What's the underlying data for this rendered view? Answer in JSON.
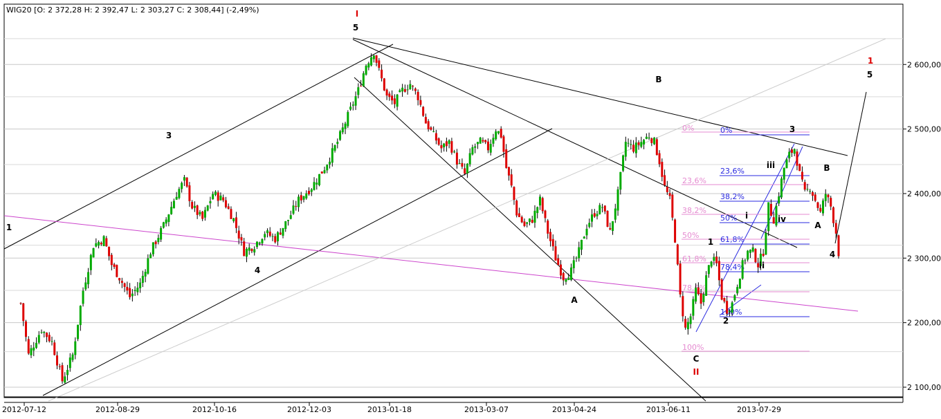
{
  "header": {
    "symbol": "WIG20",
    "ohlc_text": "WIG20 [O: 2 372,28  H: 2 392,47  L: 2 303,27  C: 2 308,44] (-2,49%)"
  },
  "colors": {
    "up": "#00aa00",
    "down": "#dd0000",
    "fib_pink": "#e58ad0",
    "fib_blue": "#2a2ae0",
    "trend_magenta": "#cc44cc",
    "grid": "#c8c8c8"
  },
  "chart_data": {
    "type": "candlestick",
    "title": "",
    "xlabel": "",
    "ylabel": "",
    "ylim": [
      2085,
      2705
    ],
    "y_ticks": [
      2100,
      2200,
      2300,
      2400,
      2500,
      2600
    ],
    "y_tick_labels": [
      "2 100,00",
      "2 200,00",
      "2 300,00",
      "2 400,00",
      "2 500,00",
      "2 600,00"
    ],
    "x_tick_labels": [
      "2012-07-12",
      "2012-08-29",
      "2012-10-16",
      "2012-12-03",
      "2013-01-18",
      "2013-03-07",
      "2013-04-24",
      "2013-06-11",
      "2013-07-29"
    ],
    "price_anchors": [
      [
        0,
        2230
      ],
      [
        3,
        2150
      ],
      [
        8,
        2190
      ],
      [
        12,
        2170
      ],
      [
        16,
        2110
      ],
      [
        20,
        2150
      ],
      [
        24,
        2250
      ],
      [
        28,
        2320
      ],
      [
        32,
        2330
      ],
      [
        35,
        2290
      ],
      [
        38,
        2270
      ],
      [
        42,
        2240
      ],
      [
        46,
        2260
      ],
      [
        50,
        2310
      ],
      [
        55,
        2350
      ],
      [
        60,
        2400
      ],
      [
        63,
        2420
      ],
      [
        66,
        2380
      ],
      [
        70,
        2360
      ],
      [
        74,
        2400
      ],
      [
        78,
        2390
      ],
      [
        82,
        2360
      ],
      [
        86,
        2310
      ],
      [
        90,
        2320
      ],
      [
        94,
        2340
      ],
      [
        98,
        2330
      ],
      [
        103,
        2360
      ],
      [
        107,
        2390
      ],
      [
        112,
        2410
      ],
      [
        117,
        2440
      ],
      [
        122,
        2480
      ],
      [
        126,
        2520
      ],
      [
        130,
        2560
      ],
      [
        133,
        2600
      ],
      [
        136,
        2620
      ],
      [
        138,
        2590
      ],
      [
        141,
        2550
      ],
      [
        144,
        2540
      ],
      [
        147,
        2560
      ],
      [
        150,
        2570
      ],
      [
        153,
        2550
      ],
      [
        156,
        2510
      ],
      [
        159,
        2490
      ],
      [
        162,
        2470
      ],
      [
        165,
        2480
      ],
      [
        168,
        2450
      ],
      [
        171,
        2430
      ],
      [
        174,
        2470
      ],
      [
        177,
        2480
      ],
      [
        180,
        2470
      ],
      [
        183,
        2500
      ],
      [
        185,
        2490
      ],
      [
        187,
        2440
      ],
      [
        189,
        2410
      ],
      [
        191,
        2370
      ],
      [
        194,
        2350
      ],
      [
        197,
        2360
      ],
      [
        200,
        2390
      ],
      [
        203,
        2340
      ],
      [
        206,
        2300
      ],
      [
        209,
        2270
      ],
      [
        212,
        2280
      ],
      [
        215,
        2310
      ],
      [
        218,
        2350
      ],
      [
        221,
        2370
      ],
      [
        224,
        2380
      ],
      [
        227,
        2340
      ],
      [
        230,
        2400
      ],
      [
        233,
        2480
      ],
      [
        236,
        2470
      ],
      [
        239,
        2480
      ],
      [
        242,
        2490
      ],
      [
        244,
        2480
      ],
      [
        246,
        2450
      ],
      [
        248,
        2410
      ],
      [
        250,
        2390
      ],
      [
        252,
        2330
      ],
      [
        254,
        2240
      ],
      [
        256,
        2190
      ],
      [
        258,
        2210
      ],
      [
        260,
        2250
      ],
      [
        262,
        2230
      ],
      [
        264,
        2270
      ],
      [
        266,
        2300
      ],
      [
        268,
        2290
      ],
      [
        270,
        2240
      ],
      [
        272,
        2220
      ],
      [
        274,
        2230
      ],
      [
        276,
        2260
      ],
      [
        278,
        2290
      ],
      [
        280,
        2310
      ],
      [
        282,
        2310
      ],
      [
        284,
        2290
      ],
      [
        286,
        2310
      ],
      [
        288,
        2380
      ],
      [
        290,
        2360
      ],
      [
        292,
        2400
      ],
      [
        294,
        2440
      ],
      [
        296,
        2460
      ],
      [
        298,
        2470
      ],
      [
        300,
        2430
      ],
      [
        302,
        2400
      ],
      [
        304,
        2410
      ],
      [
        306,
        2390
      ],
      [
        308,
        2370
      ],
      [
        310,
        2400
      ],
      [
        312,
        2380
      ],
      [
        314,
        2340
      ],
      [
        315,
        2308
      ]
    ],
    "wave_labels": [
      {
        "text": "I",
        "color": "red"
      },
      {
        "text": "5",
        "color": "black"
      },
      {
        "text": "3",
        "color": "black"
      },
      {
        "text": "1",
        "color": "black"
      },
      {
        "text": "4",
        "color": "black"
      },
      {
        "text": "B",
        "color": "black"
      },
      {
        "text": "A",
        "color": "black"
      },
      {
        "text": "C",
        "color": "black"
      },
      {
        "text": "II",
        "color": "red"
      },
      {
        "text": "1",
        "color": "black"
      },
      {
        "text": "2",
        "color": "black"
      },
      {
        "text": "i",
        "color": "black"
      },
      {
        "text": "ii",
        "color": "black"
      },
      {
        "text": "iii",
        "color": "black"
      },
      {
        "text": "iv",
        "color": "black"
      },
      {
        "text": "3",
        "color": "black"
      },
      {
        "text": "B",
        "color": "black"
      },
      {
        "text": "A",
        "color": "black"
      },
      {
        "text": "4",
        "color": "black"
      },
      {
        "text": "1",
        "color": "red"
      },
      {
        "text": "5",
        "color": "black"
      }
    ],
    "fib_pink_labels": [
      "0%",
      "23,6%",
      "38,2%",
      "50%",
      "61,8%",
      "78,6%",
      "100%"
    ],
    "fib_blue_labels": [
      "0%",
      "23,6%",
      "38,2%",
      "50%",
      "61,8%",
      "78,4%",
      "100%"
    ]
  }
}
